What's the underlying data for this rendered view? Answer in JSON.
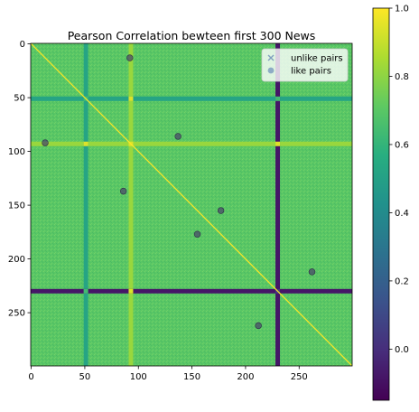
{
  "chart_data": {
    "type": "heatmap",
    "title": "Pearson Correlation bewteen first 300 News",
    "n": 300,
    "background_value": 0.7,
    "diagonal_value": 1.0,
    "bands": [
      {
        "index": 51,
        "value": 0.52
      },
      {
        "index": 93,
        "value": 0.82
      },
      {
        "index": 230,
        "value": -0.08
      }
    ],
    "x_ticks": [
      0,
      50,
      100,
      150,
      200,
      250
    ],
    "y_ticks": [
      0,
      50,
      100,
      150,
      200,
      250
    ],
    "xlim": [
      0,
      299
    ],
    "ylim": [
      299,
      0
    ],
    "colorbar": {
      "min": -0.15,
      "max": 1.0,
      "ticks": [
        0.0,
        0.2,
        0.4,
        0.6,
        0.8,
        1.0
      ],
      "tick_labels": [
        "0.0",
        "0.2",
        "0.4",
        "0.6",
        "0.8",
        "1.0"
      ],
      "colormap": "viridis"
    },
    "legend": {
      "placement": "top-right",
      "entries": [
        {
          "label": "unlike pairs",
          "marker": "x",
          "color": "#7f9fbf"
        },
        {
          "label": "like pairs",
          "marker": "o",
          "color": "#7f9fbf"
        }
      ]
    },
    "like_pairs": [
      {
        "x": 92,
        "y": 13
      },
      {
        "x": 13,
        "y": 92
      },
      {
        "x": 137,
        "y": 86
      },
      {
        "x": 86,
        "y": 137
      },
      {
        "x": 177,
        "y": 155
      },
      {
        "x": 155,
        "y": 177
      },
      {
        "x": 262,
        "y": 212
      },
      {
        "x": 212,
        "y": 262
      }
    ],
    "unlike_pairs": []
  }
}
